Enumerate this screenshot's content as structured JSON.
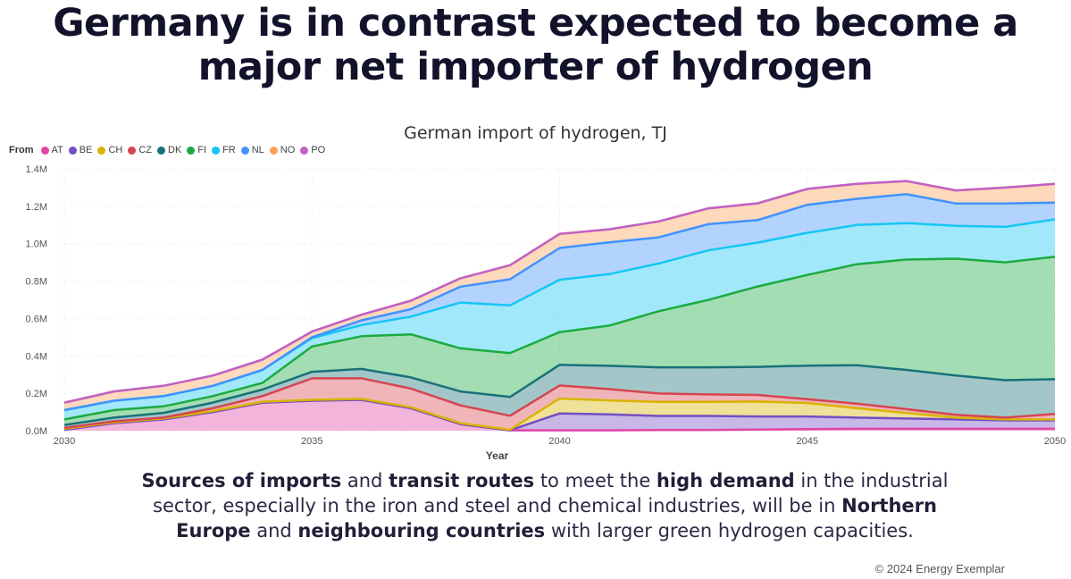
{
  "headline": {
    "line1": "Germany is in contrast expected to become a",
    "line2": "major net importer of hydrogen"
  },
  "caption": {
    "l1a": "Sources of imports",
    "l1b": " and ",
    "l1c": "transit routes",
    "l1d": " to meet the ",
    "l1e": "high demand",
    "l1f": " in the industrial",
    "l2a": "sector, especially in the iron and steel and chemical industries, will be in ",
    "l2b": "Northern",
    "l3a": "Europe",
    "l3b": " and ",
    "l3c": "neighbouring countries",
    "l3d": " with larger green hydrogen capacities."
  },
  "copyright": "© 2024 Energy Exemplar",
  "chart_data": {
    "type": "area",
    "stacked": true,
    "title": "German import of hydrogen, TJ",
    "xlabel": "Year",
    "ylabel": "",
    "legend_title": "From",
    "legend_position": "top-left",
    "grid": true,
    "xlim": [
      2030,
      2050
    ],
    "ylim": [
      0,
      1400000
    ],
    "x_ticks": [
      {
        "value": 2030,
        "label": "2030"
      },
      {
        "value": 2035,
        "label": "2035"
      },
      {
        "value": 2040,
        "label": "2040"
      },
      {
        "value": 2045,
        "label": "2045"
      },
      {
        "value": 2050,
        "label": "2050"
      }
    ],
    "y_ticks": [
      {
        "value": 0,
        "label": "0.0M"
      },
      {
        "value": 200000,
        "label": "0.2M"
      },
      {
        "value": 400000,
        "label": "0.4M"
      },
      {
        "value": 600000,
        "label": "0.6M"
      },
      {
        "value": 800000,
        "label": "0.8M"
      },
      {
        "value": 1000000,
        "label": "1.0M"
      },
      {
        "value": 1200000,
        "label": "1.2M"
      },
      {
        "value": 1400000,
        "label": "1.4M"
      }
    ],
    "x": [
      2030,
      2031,
      2032,
      2033,
      2034,
      2035,
      2036,
      2037,
      2038,
      2039,
      2040,
      2041,
      2042,
      2043,
      2044,
      2045,
      2046,
      2047,
      2048,
      2049,
      2050
    ],
    "series": [
      {
        "name": "AT",
        "color": "#e044a7",
        "values": [
          5000,
          40000,
          60000,
          100000,
          150000,
          160000,
          165000,
          120000,
          35000,
          2000,
          2000,
          2000,
          4000,
          4000,
          6000,
          8000,
          10000,
          10000,
          10000,
          10000,
          10000
        ]
      },
      {
        "name": "BE",
        "color": "#744ec2",
        "values": [
          0,
          0,
          0,
          0,
          0,
          0,
          0,
          0,
          0,
          0,
          90000,
          85000,
          75000,
          75000,
          70000,
          68000,
          60000,
          55000,
          50000,
          45000,
          45000
        ]
      },
      {
        "name": "CH",
        "color": "#d9b300",
        "values": [
          5000,
          5000,
          5000,
          5000,
          5000,
          5000,
          5000,
          5000,
          5000,
          3000,
          80000,
          75000,
          75000,
          75000,
          80000,
          72000,
          50000,
          30000,
          10000,
          5000,
          5000
        ]
      },
      {
        "name": "CZ",
        "color": "#d64550",
        "values": [
          5000,
          5000,
          5000,
          15000,
          30000,
          115000,
          110000,
          100000,
          95000,
          75000,
          70000,
          60000,
          45000,
          40000,
          35000,
          20000,
          25000,
          20000,
          15000,
          10000,
          30000
        ]
      },
      {
        "name": "DK",
        "color": "#197278",
        "values": [
          15000,
          20000,
          25000,
          30000,
          35000,
          35000,
          50000,
          60000,
          75000,
          100000,
          110000,
          125000,
          140000,
          145000,
          150000,
          180000,
          205000,
          210000,
          210000,
          200000,
          185000
        ]
      },
      {
        "name": "FI",
        "color": "#1aab40",
        "values": [
          30000,
          40000,
          35000,
          35000,
          35000,
          135000,
          175000,
          230000,
          230000,
          235000,
          175000,
          215000,
          300000,
          360000,
          430000,
          485000,
          540000,
          590000,
          625000,
          630000,
          655000
        ]
      },
      {
        "name": "FR",
        "color": "#15c6f4",
        "values": [
          50000,
          50000,
          55000,
          55000,
          70000,
          45000,
          60000,
          95000,
          245000,
          255000,
          280000,
          275000,
          255000,
          265000,
          235000,
          225000,
          210000,
          195000,
          175000,
          190000,
          200000
        ]
      },
      {
        "name": "NL",
        "color": "#4092ff",
        "values": [
          0,
          0,
          0,
          0,
          0,
          5000,
          25000,
          40000,
          85000,
          140000,
          170000,
          170000,
          140000,
          140000,
          120000,
          150000,
          140000,
          155000,
          120000,
          125000,
          90000
        ]
      },
      {
        "name": "NO",
        "color": "#ffa058",
        "values": [
          40000,
          50000,
          55000,
          55000,
          55000,
          30000,
          30000,
          45000,
          45000,
          75000,
          75000,
          70000,
          85000,
          85000,
          90000,
          85000,
          80000,
          70000,
          70000,
          85000,
          100000
        ]
      },
      {
        "name": "PO",
        "color": "#bf61c8",
        "values": [
          0,
          0,
          0,
          0,
          0,
          0,
          0,
          0,
          0,
          0,
          0,
          0,
          0,
          0,
          0,
          0,
          0,
          0,
          0,
          0,
          0
        ]
      }
    ]
  }
}
